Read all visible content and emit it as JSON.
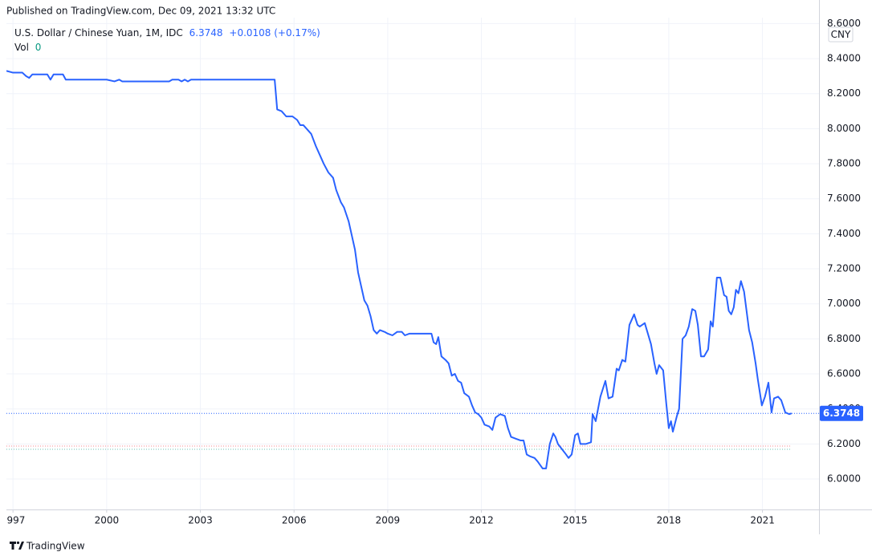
{
  "header": {
    "published": "Published on TradingView.com, Dec 09, 2021 13:32 UTC"
  },
  "chart_data": {
    "type": "line",
    "x": [
      1996.79,
      1997.0,
      1997.3,
      1997.42,
      1997.52,
      1997.62,
      1997.9,
      1998.1,
      1998.2,
      1998.3,
      1998.6,
      1998.69,
      1999.5,
      2000.0,
      2000.25,
      2000.4,
      2000.5,
      2001.0,
      2002.0,
      2002.1,
      2002.3,
      2002.4,
      2002.5,
      2002.6,
      2002.7,
      2005.38,
      2005.46,
      2005.6,
      2005.75,
      2005.95,
      2006.1,
      2006.2,
      2006.3,
      2006.45,
      2006.55,
      2006.7,
      2006.85,
      2006.95,
      2007.1,
      2007.25,
      2007.35,
      2007.5,
      2007.6,
      2007.75,
      2007.85,
      2007.95,
      2008.05,
      2008.15,
      2008.25,
      2008.35,
      2008.45,
      2008.55,
      2008.65,
      2008.75,
      2008.9,
      2009.0,
      2009.15,
      2009.3,
      2009.45,
      2009.55,
      2009.7,
      2010.0,
      2010.4,
      2010.47,
      2010.55,
      2010.62,
      2010.72,
      2010.85,
      2010.95,
      2011.05,
      2011.15,
      2011.25,
      2011.35,
      2011.45,
      2011.6,
      2011.7,
      2011.8,
      2011.9,
      2012.0,
      2012.1,
      2012.25,
      2012.35,
      2012.45,
      2012.6,
      2012.75,
      2012.85,
      2012.95,
      2013.1,
      2013.25,
      2013.35,
      2013.45,
      2013.55,
      2013.7,
      2013.8,
      2013.96,
      2014.07,
      2014.19,
      2014.3,
      2014.37,
      2014.45,
      2014.58,
      2014.71,
      2014.79,
      2014.89,
      2015.0,
      2015.09,
      2015.17,
      2015.35,
      2015.51,
      2015.56,
      2015.66,
      2015.81,
      2015.97,
      2016.07,
      2016.2,
      2016.33,
      2016.4,
      2016.51,
      2016.61,
      2016.74,
      2016.89,
      2017.0,
      2017.07,
      2017.23,
      2017.33,
      2017.43,
      2017.54,
      2017.61,
      2017.69,
      2017.82,
      2017.92,
      2018.0,
      2018.07,
      2018.13,
      2018.26,
      2018.33,
      2018.44,
      2018.54,
      2018.64,
      2018.75,
      2018.85,
      2018.93,
      2019.03,
      2019.13,
      2019.26,
      2019.34,
      2019.41,
      2019.54,
      2019.65,
      2019.77,
      2019.85,
      2019.92,
      2020.0,
      2020.08,
      2020.15,
      2020.23,
      2020.31,
      2020.41,
      2020.57,
      2020.67,
      2020.78,
      2020.85,
      2020.98,
      2021.08,
      2021.19,
      2021.29,
      2021.37,
      2021.5,
      2021.6,
      2021.73,
      2021.86,
      2021.93
    ],
    "series": [
      {
        "name": "U.S. Dollar / Chinese Yuan, 1M, IDC",
        "color": "#2962ff",
        "values": [
          8.33,
          8.32,
          8.32,
          8.3,
          8.29,
          8.31,
          8.31,
          8.31,
          8.28,
          8.31,
          8.31,
          8.28,
          8.28,
          8.28,
          8.27,
          8.28,
          8.27,
          8.27,
          8.27,
          8.28,
          8.28,
          8.27,
          8.28,
          8.27,
          8.28,
          8.28,
          8.11,
          8.1,
          8.07,
          8.07,
          8.05,
          8.02,
          8.02,
          7.99,
          7.97,
          7.9,
          7.84,
          7.8,
          7.75,
          7.72,
          7.65,
          7.58,
          7.55,
          7.47,
          7.39,
          7.31,
          7.18,
          7.1,
          7.02,
          6.99,
          6.93,
          6.85,
          6.83,
          6.85,
          6.84,
          6.83,
          6.82,
          6.84,
          6.84,
          6.82,
          6.83,
          6.83,
          6.83,
          6.78,
          6.77,
          6.81,
          6.7,
          6.68,
          6.66,
          6.59,
          6.6,
          6.56,
          6.55,
          6.49,
          6.47,
          6.42,
          6.38,
          6.37,
          6.35,
          6.31,
          6.3,
          6.28,
          6.35,
          6.37,
          6.36,
          6.29,
          6.24,
          6.23,
          6.22,
          6.22,
          6.14,
          6.13,
          6.12,
          6.1,
          6.06,
          6.06,
          6.2,
          6.26,
          6.24,
          6.2,
          6.17,
          6.14,
          6.12,
          6.14,
          6.25,
          6.26,
          6.2,
          6.2,
          6.21,
          6.37,
          6.33,
          6.47,
          6.56,
          6.46,
          6.47,
          6.63,
          6.62,
          6.68,
          6.67,
          6.88,
          6.94,
          6.88,
          6.87,
          6.89,
          6.83,
          6.77,
          6.66,
          6.6,
          6.65,
          6.62,
          6.43,
          6.29,
          6.33,
          6.27,
          6.36,
          6.4,
          6.8,
          6.82,
          6.87,
          6.97,
          6.96,
          6.88,
          6.7,
          6.7,
          6.74,
          6.9,
          6.87,
          7.15,
          7.15,
          7.05,
          7.04,
          6.96,
          6.94,
          6.98,
          7.08,
          7.06,
          7.13,
          7.07,
          6.85,
          6.78,
          6.66,
          6.57,
          6.42,
          6.47,
          6.55,
          6.38,
          6.46,
          6.47,
          6.45,
          6.38,
          6.37,
          6.3748
        ]
      }
    ],
    "last": 6.3748,
    "change": "+0.0108 (+0.17%)",
    "volume_label": "Vol",
    "volume": 0,
    "currency": "CNY",
    "xlim": [
      1996.79,
      2022.81
    ],
    "xticks": [
      1997,
      2000,
      2003,
      2006,
      2009,
      2012,
      2015,
      2018,
      2021
    ],
    "ylim": [
      5.826,
      8.634
    ],
    "yticks": [
      {
        "value": 6.0,
        "label": "6.0000"
      },
      {
        "value": 6.2,
        "label": "6.2000"
      },
      {
        "value": 6.4,
        "label": "6.4000"
      },
      {
        "value": 6.6,
        "label": "6.6000"
      },
      {
        "value": 6.8,
        "label": "6.8000"
      },
      {
        "value": 7.0,
        "label": "7.0000"
      },
      {
        "value": 7.2,
        "label": "7.2000"
      },
      {
        "value": 7.4,
        "label": "7.4000"
      },
      {
        "value": 7.6,
        "label": "7.6000"
      },
      {
        "value": 7.8,
        "label": "7.8000"
      },
      {
        "value": 8.0,
        "label": "8.0000"
      },
      {
        "value": 8.2,
        "label": "8.2000"
      },
      {
        "value": 8.4,
        "label": "8.4000"
      },
      {
        "value": 8.6,
        "label": "8.6000"
      }
    ],
    "grid": true
  },
  "footer": {
    "brand": "TradingView"
  }
}
